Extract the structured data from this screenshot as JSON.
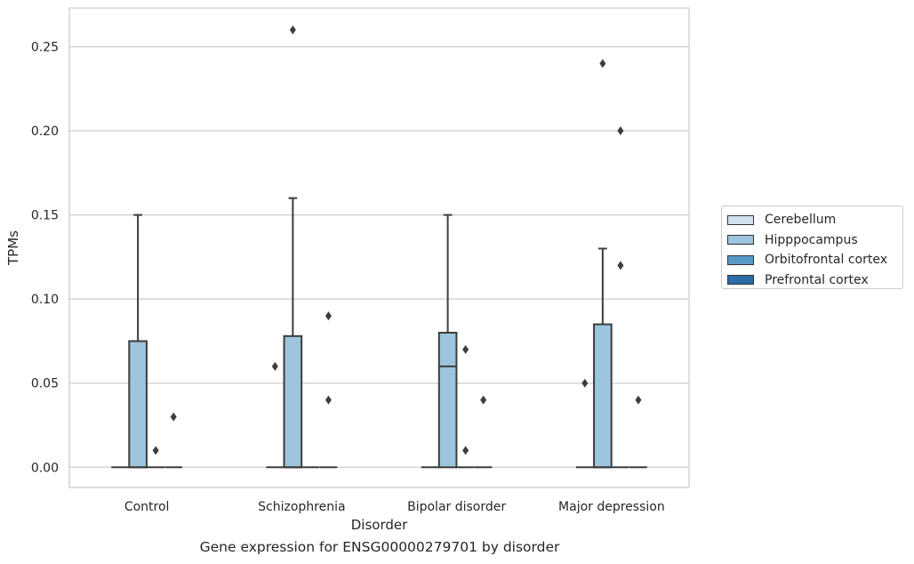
{
  "chart_data": {
    "type": "box",
    "caption": "Gene expression for ENSG00000279701 by disorder",
    "xlabel": "Disorder",
    "ylabel": "TPMs",
    "ylim": [
      -0.012,
      0.273
    ],
    "yticks": [
      "0.00",
      "0.05",
      "0.10",
      "0.15",
      "0.20",
      "0.25"
    ],
    "ytick_values": [
      0,
      0.05,
      0.1,
      0.15,
      0.2,
      0.25
    ],
    "grid": true,
    "legend_placement": "right",
    "categories": [
      "Control",
      "Schizophrenia",
      "Bipolar disorder",
      "Major depression"
    ],
    "series": [
      {
        "name": "Cerebellum",
        "color": "#d0e1f0",
        "boxes": [
          {
            "q1": 0,
            "median": 0,
            "q3": 0,
            "whislo": 0,
            "whishi": 0,
            "fliers": []
          },
          {
            "q1": 0,
            "median": 0,
            "q3": 0,
            "whislo": 0,
            "whishi": 0,
            "fliers": [
              0.06
            ]
          },
          {
            "q1": 0,
            "median": 0,
            "q3": 0,
            "whislo": 0,
            "whishi": 0,
            "fliers": []
          },
          {
            "q1": 0,
            "median": 0,
            "q3": 0,
            "whislo": 0,
            "whishi": 0,
            "fliers": [
              0.05
            ]
          }
        ]
      },
      {
        "name": "Hipppocampus",
        "color": "#9dc5de",
        "boxes": [
          {
            "q1": 0,
            "median": 0,
            "q3": 0.075,
            "whislo": 0,
            "whishi": 0.15,
            "fliers": []
          },
          {
            "q1": 0,
            "median": 0,
            "q3": 0.078,
            "whislo": 0,
            "whishi": 0.16,
            "fliers": [
              0.26
            ]
          },
          {
            "q1": 0,
            "median": 0.06,
            "q3": 0.08,
            "whislo": 0,
            "whishi": 0.15,
            "fliers": []
          },
          {
            "q1": 0,
            "median": 0,
            "q3": 0.085,
            "whislo": 0,
            "whishi": 0.13,
            "fliers": [
              0.24
            ]
          }
        ]
      },
      {
        "name": "Orbitofrontal cortex",
        "color": "#5a98c5",
        "boxes": [
          {
            "q1": 0,
            "median": 0,
            "q3": 0,
            "whislo": 0,
            "whishi": 0,
            "fliers": [
              0.01
            ]
          },
          {
            "q1": 0,
            "median": 0,
            "q3": 0,
            "whislo": 0,
            "whishi": 0,
            "fliers": []
          },
          {
            "q1": 0,
            "median": 0,
            "q3": 0,
            "whislo": 0,
            "whishi": 0,
            "fliers": [
              0.07,
              0.01
            ]
          },
          {
            "q1": 0,
            "median": 0,
            "q3": 0,
            "whislo": 0,
            "whishi": 0,
            "fliers": [
              0.2,
              0.12
            ]
          }
        ]
      },
      {
        "name": "Prefrontal cortex",
        "color": "#2a6ba8",
        "boxes": [
          {
            "q1": 0,
            "median": 0,
            "q3": 0,
            "whislo": 0,
            "whishi": 0,
            "fliers": [
              0.03
            ]
          },
          {
            "q1": 0,
            "median": 0,
            "q3": 0,
            "whislo": 0,
            "whishi": 0,
            "fliers": [
              0.09,
              0.04
            ]
          },
          {
            "q1": 0,
            "median": 0,
            "q3": 0,
            "whislo": 0,
            "whishi": 0,
            "fliers": [
              0.04
            ]
          },
          {
            "q1": 0,
            "median": 0,
            "q3": 0,
            "whislo": 0,
            "whishi": 0,
            "fliers": [
              0.04
            ]
          }
        ]
      }
    ]
  }
}
